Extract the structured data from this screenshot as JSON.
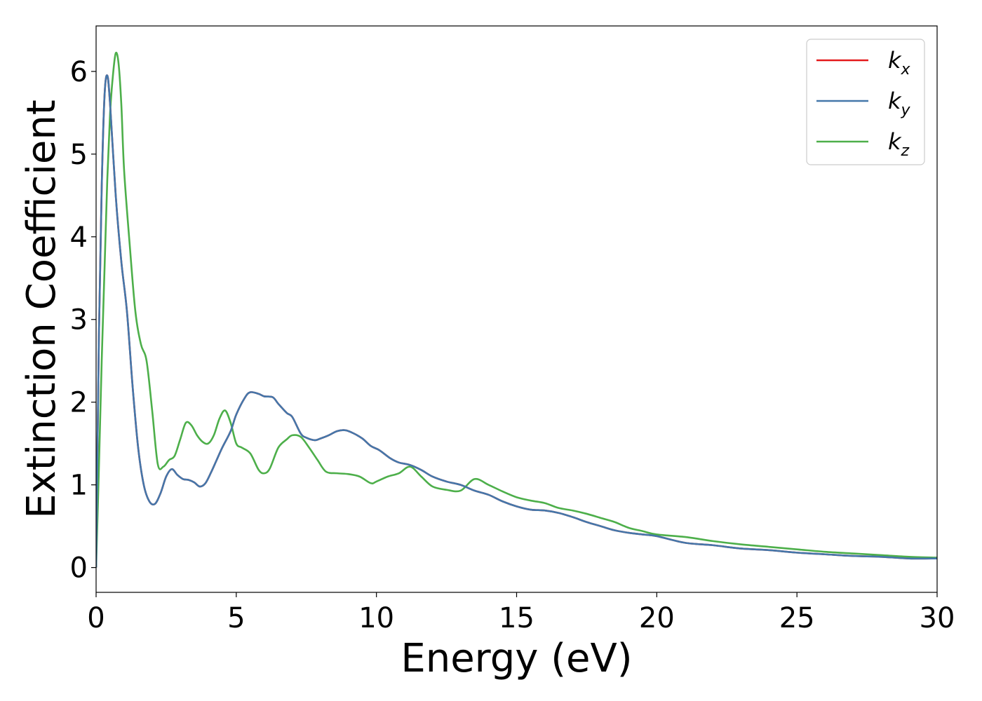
{
  "chart_data": {
    "type": "line",
    "xlabel": "Energy (eV)",
    "ylabel": "Extinction Coefficient",
    "xlim": [
      0,
      30
    ],
    "ylim": [
      -0.3,
      6.55
    ],
    "xticks": [
      0,
      5,
      10,
      15,
      20,
      25,
      30
    ],
    "yticks": [
      0,
      1,
      2,
      3,
      4,
      5,
      6
    ],
    "grid": false,
    "legend_position": "top-right",
    "series": [
      {
        "name": "k_x",
        "legend_base": "k",
        "legend_sub": "x",
        "color": "#e41a1c",
        "x": [
          0,
          0.1,
          0.2,
          0.3,
          0.4,
          0.5,
          0.7,
          0.9,
          1.1,
          1.3,
          1.5,
          1.7,
          1.9,
          2.1,
          2.3,
          2.5,
          2.7,
          2.9,
          3.1,
          3.3,
          3.5,
          3.7,
          3.9,
          4.1,
          4.3,
          4.5,
          4.8,
          5.0,
          5.3,
          5.5,
          5.8,
          6.0,
          6.3,
          6.5,
          6.8,
          7.0,
          7.3,
          7.5,
          7.8,
          8.0,
          8.3,
          8.6,
          8.9,
          9.2,
          9.5,
          9.8,
          10.1,
          10.5,
          10.8,
          11.2,
          11.6,
          12.0,
          12.5,
          13.0,
          13.5,
          14.0,
          14.5,
          15.0,
          15.5,
          16.0,
          16.5,
          17.0,
          17.5,
          18.0,
          18.5,
          19.0,
          19.5,
          20.0,
          21.0,
          22.0,
          23.0,
          24.0,
          25.0,
          26.0,
          27.0,
          28.0,
          29.0,
          30.0
        ],
        "values": [
          0,
          2.8,
          4.6,
          5.7,
          5.95,
          5.6,
          4.5,
          3.7,
          3.1,
          2.2,
          1.45,
          1.0,
          0.8,
          0.77,
          0.9,
          1.1,
          1.19,
          1.12,
          1.07,
          1.06,
          1.03,
          0.98,
          1.02,
          1.15,
          1.3,
          1.45,
          1.65,
          1.85,
          2.05,
          2.12,
          2.1,
          2.07,
          2.06,
          1.98,
          1.87,
          1.82,
          1.62,
          1.57,
          1.54,
          1.56,
          1.6,
          1.65,
          1.66,
          1.62,
          1.56,
          1.47,
          1.42,
          1.32,
          1.27,
          1.24,
          1.18,
          1.1,
          1.04,
          1.0,
          0.93,
          0.88,
          0.8,
          0.74,
          0.7,
          0.69,
          0.66,
          0.61,
          0.55,
          0.5,
          0.45,
          0.42,
          0.4,
          0.38,
          0.3,
          0.27,
          0.23,
          0.21,
          0.18,
          0.16,
          0.14,
          0.13,
          0.11,
          0.11
        ]
      },
      {
        "name": "k_y",
        "legend_base": "k",
        "legend_sub": "y",
        "color": "#4477aa",
        "x": [
          0,
          0.1,
          0.2,
          0.3,
          0.4,
          0.5,
          0.7,
          0.9,
          1.1,
          1.3,
          1.5,
          1.7,
          1.9,
          2.1,
          2.3,
          2.5,
          2.7,
          2.9,
          3.1,
          3.3,
          3.5,
          3.7,
          3.9,
          4.1,
          4.3,
          4.5,
          4.8,
          5.0,
          5.3,
          5.5,
          5.8,
          6.0,
          6.3,
          6.5,
          6.8,
          7.0,
          7.3,
          7.5,
          7.8,
          8.0,
          8.3,
          8.6,
          8.9,
          9.2,
          9.5,
          9.8,
          10.1,
          10.5,
          10.8,
          11.2,
          11.6,
          12.0,
          12.5,
          13.0,
          13.5,
          14.0,
          14.5,
          15.0,
          15.5,
          16.0,
          16.5,
          17.0,
          17.5,
          18.0,
          18.5,
          19.0,
          19.5,
          20.0,
          21.0,
          22.0,
          23.0,
          24.0,
          25.0,
          26.0,
          27.0,
          28.0,
          29.0,
          30.0
        ],
        "values": [
          0,
          2.8,
          4.6,
          5.7,
          5.95,
          5.6,
          4.5,
          3.7,
          3.1,
          2.2,
          1.45,
          1.0,
          0.8,
          0.77,
          0.9,
          1.1,
          1.19,
          1.12,
          1.07,
          1.06,
          1.03,
          0.98,
          1.02,
          1.15,
          1.3,
          1.45,
          1.65,
          1.85,
          2.05,
          2.12,
          2.1,
          2.07,
          2.06,
          1.98,
          1.87,
          1.82,
          1.62,
          1.57,
          1.54,
          1.56,
          1.6,
          1.65,
          1.66,
          1.62,
          1.56,
          1.47,
          1.42,
          1.32,
          1.27,
          1.24,
          1.18,
          1.1,
          1.04,
          1.0,
          0.93,
          0.88,
          0.8,
          0.74,
          0.7,
          0.69,
          0.66,
          0.61,
          0.55,
          0.5,
          0.45,
          0.42,
          0.4,
          0.38,
          0.3,
          0.27,
          0.23,
          0.21,
          0.18,
          0.16,
          0.14,
          0.13,
          0.11,
          0.11
        ]
      },
      {
        "name": "k_z",
        "legend_base": "k",
        "legend_sub": "z",
        "color": "#4daf4a",
        "x": [
          0,
          0.1,
          0.2,
          0.3,
          0.4,
          0.5,
          0.6,
          0.7,
          0.8,
          0.9,
          1.0,
          1.2,
          1.4,
          1.6,
          1.8,
          2.0,
          2.2,
          2.4,
          2.6,
          2.8,
          3.0,
          3.2,
          3.4,
          3.6,
          3.8,
          4.0,
          4.2,
          4.4,
          4.6,
          4.8,
          5.0,
          5.2,
          5.5,
          5.8,
          6.0,
          6.2,
          6.5,
          6.8,
          7.0,
          7.3,
          7.6,
          7.9,
          8.2,
          8.6,
          9.0,
          9.4,
          9.8,
          10.0,
          10.4,
          10.8,
          11.2,
          11.6,
          12.0,
          12.5,
          13.0,
          13.5,
          14.0,
          14.5,
          15.0,
          15.5,
          16.0,
          16.5,
          17.0,
          17.5,
          18.0,
          18.5,
          19.0,
          19.5,
          20.0,
          21.0,
          22.0,
          23.0,
          24.0,
          25.0,
          26.0,
          27.0,
          28.0,
          29.0,
          30.0
        ],
        "values": [
          0,
          1.2,
          2.5,
          3.6,
          4.7,
          5.5,
          5.95,
          6.22,
          6.1,
          5.6,
          4.8,
          3.9,
          3.1,
          2.7,
          2.5,
          1.9,
          1.25,
          1.22,
          1.3,
          1.35,
          1.55,
          1.75,
          1.72,
          1.6,
          1.52,
          1.5,
          1.6,
          1.8,
          1.9,
          1.75,
          1.5,
          1.45,
          1.38,
          1.18,
          1.14,
          1.2,
          1.45,
          1.55,
          1.6,
          1.58,
          1.45,
          1.3,
          1.16,
          1.14,
          1.13,
          1.1,
          1.02,
          1.04,
          1.1,
          1.14,
          1.22,
          1.1,
          0.98,
          0.94,
          0.93,
          1.07,
          1.0,
          0.92,
          0.85,
          0.81,
          0.78,
          0.72,
          0.69,
          0.65,
          0.6,
          0.55,
          0.48,
          0.44,
          0.4,
          0.37,
          0.32,
          0.28,
          0.25,
          0.22,
          0.19,
          0.17,
          0.15,
          0.13,
          0.12
        ]
      }
    ]
  }
}
